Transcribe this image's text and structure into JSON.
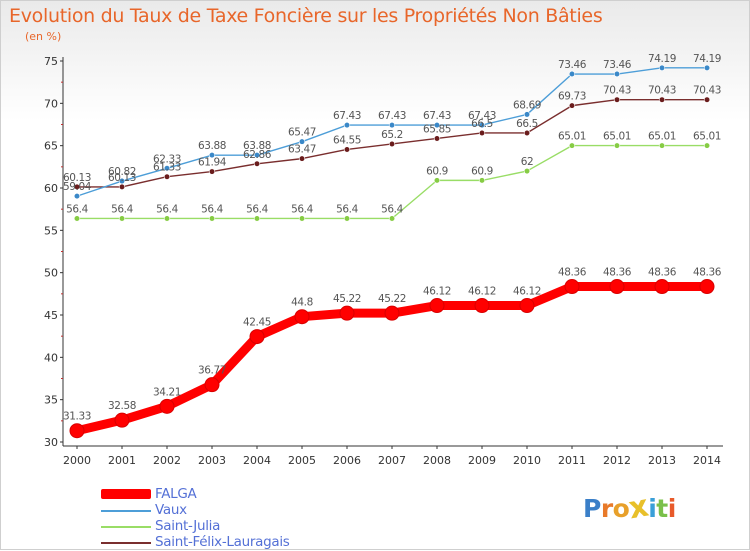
{
  "header": {
    "title": "Evolution du Taux de Taxe Foncière sur les Propriétés Non Bâties",
    "subtitle": "(en %)"
  },
  "chart_data": {
    "type": "line",
    "title": "Evolution du Taux de Taxe Foncière sur les Propriétés Non Bâties",
    "ylabel": "(en %)",
    "xlabel": "",
    "ylim": [
      30,
      75
    ],
    "yticks": [
      30,
      35,
      40,
      45,
      50,
      55,
      60,
      65,
      70,
      75
    ],
    "grid": false,
    "legend_position": "bottom-left",
    "x": [
      "2000",
      "2001",
      "2002",
      "2003",
      "2004",
      "2005",
      "2006",
      "2007",
      "2008",
      "2009",
      "2010",
      "2011",
      "2012",
      "2013",
      "2014"
    ],
    "series": [
      {
        "name": "FALGA",
        "color": "#ff0000",
        "bold": true,
        "values": [
          31.33,
          32.58,
          34.21,
          36.77,
          42.45,
          44.8,
          45.22,
          45.22,
          46.12,
          46.12,
          46.12,
          48.36,
          48.36,
          48.36,
          48.36
        ],
        "labels": [
          "31.33",
          "32.58",
          "34.21",
          "36.77",
          "42.45",
          "44.8",
          "45.22",
          "45.22",
          "46.12",
          "46.12",
          "46.12",
          "48.36",
          "48.36",
          "48.36",
          "48.36"
        ]
      },
      {
        "name": "Vaux",
        "color": "#4d9ed8",
        "marker": "#3a88c8",
        "bold": false,
        "values": [
          59.04,
          60.82,
          62.33,
          63.88,
          63.88,
          65.47,
          67.43,
          67.43,
          67.43,
          67.43,
          68.69,
          73.46,
          73.46,
          74.19,
          74.19
        ],
        "labels": [
          "59.04",
          "60.82",
          "62.33",
          "63.88",
          "63.88",
          "65.47",
          "67.43",
          "67.43",
          "67.43",
          "67.43",
          "68.69",
          "73.46",
          "73.46",
          "74.19",
          "74.19"
        ]
      },
      {
        "name": "Saint-Julia",
        "color": "#99dd66",
        "marker": "#86cc44",
        "bold": false,
        "values": [
          56.4,
          56.4,
          56.4,
          56.4,
          56.4,
          56.4,
          56.4,
          56.4,
          60.9,
          60.9,
          62,
          65.01,
          65.01,
          65.01,
          65.01
        ],
        "labels": [
          "56.4",
          "56.4",
          "56.4",
          "56.4",
          "56.4",
          "56.4",
          "56.4",
          "56.4",
          "60.9",
          "60.9",
          "62",
          "65.01",
          "65.01",
          "65.01",
          "65.01"
        ]
      },
      {
        "name": "Saint-Félix-Lauragais",
        "color": "#7a2e2e",
        "marker": "#6a1c1c",
        "bold": false,
        "values": [
          60.13,
          60.13,
          61.33,
          61.94,
          62.86,
          63.47,
          64.55,
          65.2,
          65.85,
          66.5,
          66.5,
          69.73,
          70.43,
          70.43,
          70.43
        ],
        "labels": [
          "60.13",
          "60.13",
          "61.33",
          "61.94",
          "62.86",
          "63.47",
          "64.55",
          "65.2",
          "65.85",
          "66.5",
          "66.5",
          "69.73",
          "70.43",
          "70.43",
          "70.43"
        ]
      }
    ]
  },
  "legend": {
    "items": [
      {
        "label": "FALGA",
        "color": "#ff0000"
      },
      {
        "label": "Vaux",
        "color": "#4d9ed8"
      },
      {
        "label": "Saint-Julia",
        "color": "#99dd66"
      },
      {
        "label": "Saint-Félix-Lauragais",
        "color": "#7a2e2e"
      }
    ]
  },
  "logo": {
    "text": "Proxiti",
    "letters": [
      {
        "ch": "P",
        "color": "#3a7fc8"
      },
      {
        "ch": "r",
        "color": "#e87a2a"
      },
      {
        "ch": "o",
        "color": "#e8a02a"
      },
      {
        "ch": "x",
        "color": "#e8c02a"
      },
      {
        "ch": "i",
        "color": "#3a9fd8"
      },
      {
        "ch": "t",
        "color": "#7ac04a"
      },
      {
        "ch": "i",
        "color": "#e85a2a"
      }
    ]
  }
}
